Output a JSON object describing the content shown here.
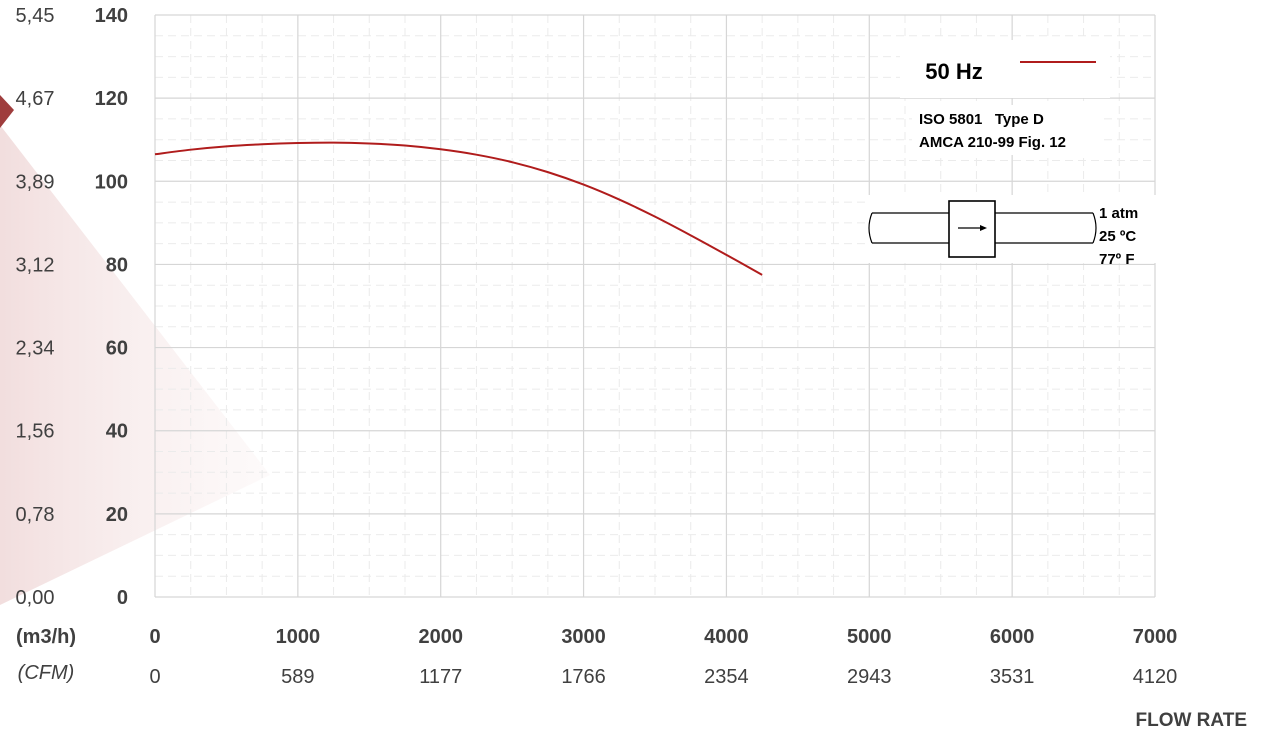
{
  "chart_data": {
    "type": "line",
    "x_axis": {
      "unit": "(m3/h)",
      "ticks": [
        "0",
        "1000",
        "2000",
        "3000",
        "4000",
        "5000",
        "6000",
        "7000"
      ],
      "range": [
        0,
        7000
      ],
      "secondary_unit": "(CFM)",
      "secondary_ticks": [
        "0",
        "589",
        "1177",
        "1766",
        "2354",
        "2943",
        "3531",
        "4120"
      ],
      "title": "FLOW RATE"
    },
    "y_axis": {
      "ticks": [
        "0",
        "20",
        "40",
        "60",
        "80",
        "100",
        "120",
        "140"
      ],
      "range": [
        0,
        140
      ],
      "secondary_ticks": [
        "0,00",
        "0,78",
        "1,56",
        "2,34",
        "3,12",
        "3,89",
        "4,67",
        "5,45"
      ]
    },
    "series": [
      {
        "name": "50 Hz",
        "color": "#B01C1C",
        "x": [
          0,
          250,
          500,
          750,
          1000,
          1250,
          1500,
          1750,
          2000,
          2250,
          2500,
          2750,
          3000,
          3250,
          3500,
          3750,
          4000,
          4250
        ],
        "y": [
          106.5,
          107.6,
          108.4,
          108.9,
          109.2,
          109.3,
          109.1,
          108.6,
          107.7,
          106.4,
          104.6,
          102.2,
          99.2,
          95.6,
          91.5,
          87.0,
          82.3,
          77.5
        ]
      }
    ],
    "grid": true,
    "minor_grid": true,
    "legend_position": "top-right",
    "annotations": {
      "standard_lines": [
        "ISO 5801   Type D",
        "AMCA 210-99 Fig. 12"
      ],
      "conditions": [
        "1 atm",
        "25 ºC",
        "77º F"
      ]
    }
  }
}
